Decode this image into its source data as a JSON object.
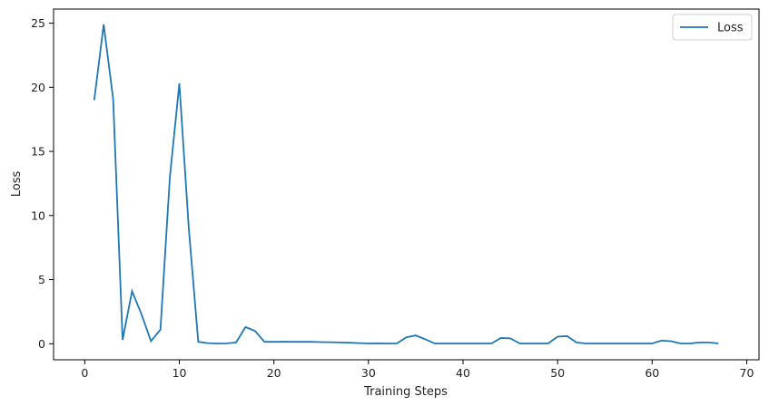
{
  "chart_data": {
    "type": "line",
    "xlabel": "Training Steps",
    "ylabel": "Loss",
    "xlim": [
      -3.3,
      71.3
    ],
    "ylim": [
      -1.25,
      26.1
    ],
    "xticks": [
      0,
      10,
      20,
      30,
      40,
      50,
      60,
      70
    ],
    "yticks": [
      0,
      5,
      10,
      15,
      20,
      25
    ],
    "grid": false,
    "legend_position": "top-right",
    "series": [
      {
        "name": "Loss",
        "color": "#1f77b4",
        "x": [
          1,
          2,
          3,
          4,
          5,
          6,
          7,
          8,
          9,
          10,
          11,
          12,
          13,
          14,
          15,
          16,
          17,
          18,
          19,
          20,
          21,
          22,
          23,
          24,
          25,
          26,
          27,
          28,
          29,
          30,
          31,
          32,
          33,
          34,
          35,
          36,
          37,
          38,
          39,
          40,
          41,
          42,
          43,
          44,
          45,
          46,
          47,
          48,
          49,
          50,
          51,
          52,
          53,
          54,
          55,
          56,
          57,
          58,
          59,
          60,
          61,
          62,
          63,
          64,
          65,
          66,
          67
        ],
        "values": [
          19.0,
          24.9,
          19.1,
          0.3,
          4.1,
          2.3,
          0.2,
          1.1,
          13.0,
          20.3,
          9.0,
          0.15,
          0.05,
          0.02,
          0.03,
          0.1,
          1.3,
          1.0,
          0.15,
          0.15,
          0.16,
          0.15,
          0.15,
          0.15,
          0.13,
          0.12,
          0.1,
          0.08,
          0.05,
          0.02,
          0.03,
          0.02,
          0.02,
          0.5,
          0.65,
          0.35,
          0.02,
          0.02,
          0.02,
          0.02,
          0.02,
          0.02,
          0.02,
          0.45,
          0.42,
          0.02,
          0.02,
          0.02,
          0.02,
          0.55,
          0.6,
          0.1,
          0.02,
          0.02,
          0.02,
          0.02,
          0.02,
          0.02,
          0.02,
          0.02,
          0.25,
          0.2,
          0.02,
          0.02,
          0.1,
          0.1,
          0.02
        ]
      }
    ]
  }
}
